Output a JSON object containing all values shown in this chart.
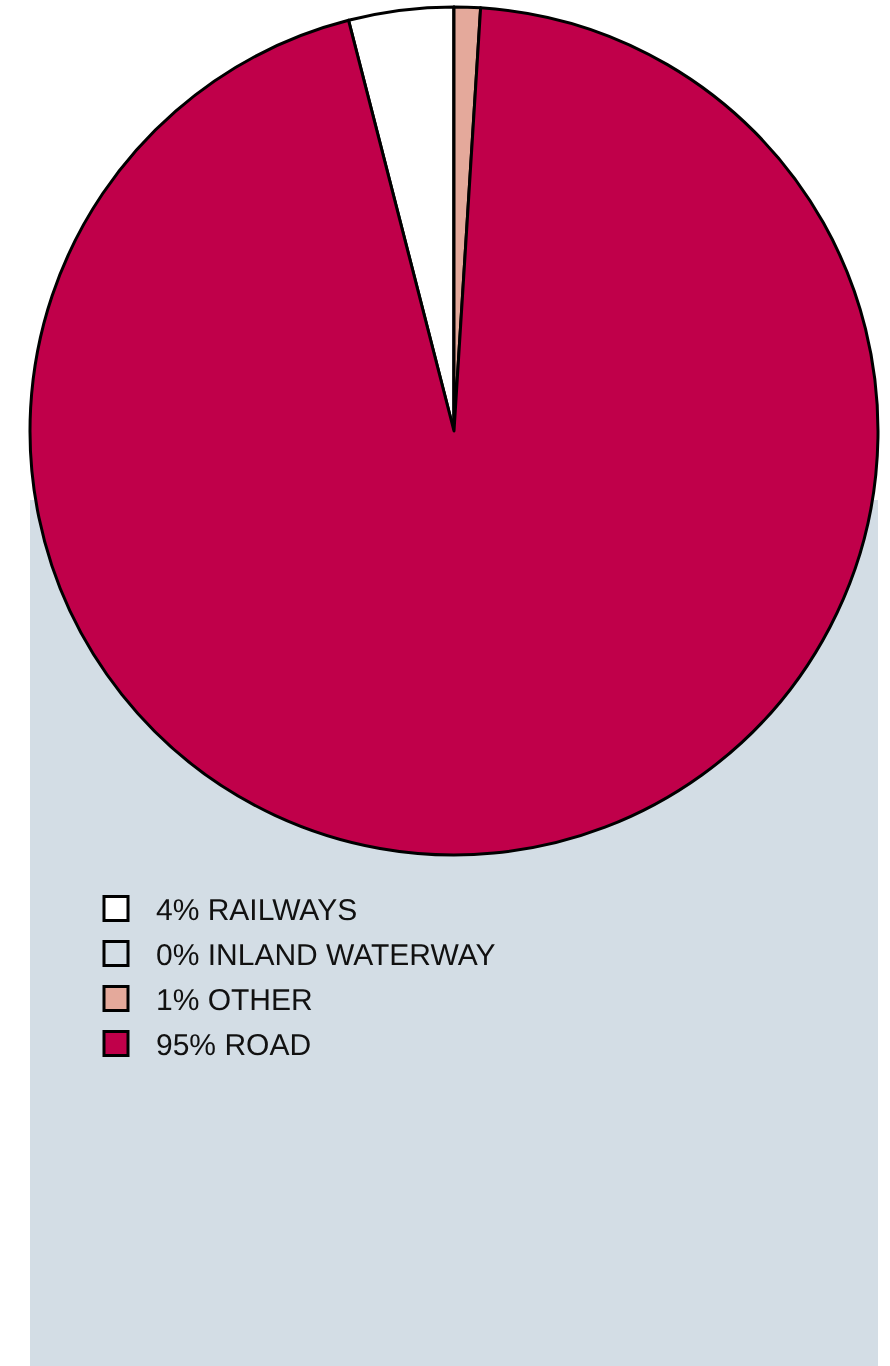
{
  "chart_data": {
    "type": "pie",
    "categories": [
      "4% RAILWAYS",
      "0% INLAND WATERWAY",
      "1% OTHER",
      "95% ROAD"
    ],
    "values": [
      4,
      0,
      1,
      95
    ],
    "colors": [
      "#ffffff",
      "#d3dde5",
      "#e4a99b",
      "#c0004a"
    ],
    "legend": "bottom left"
  }
}
